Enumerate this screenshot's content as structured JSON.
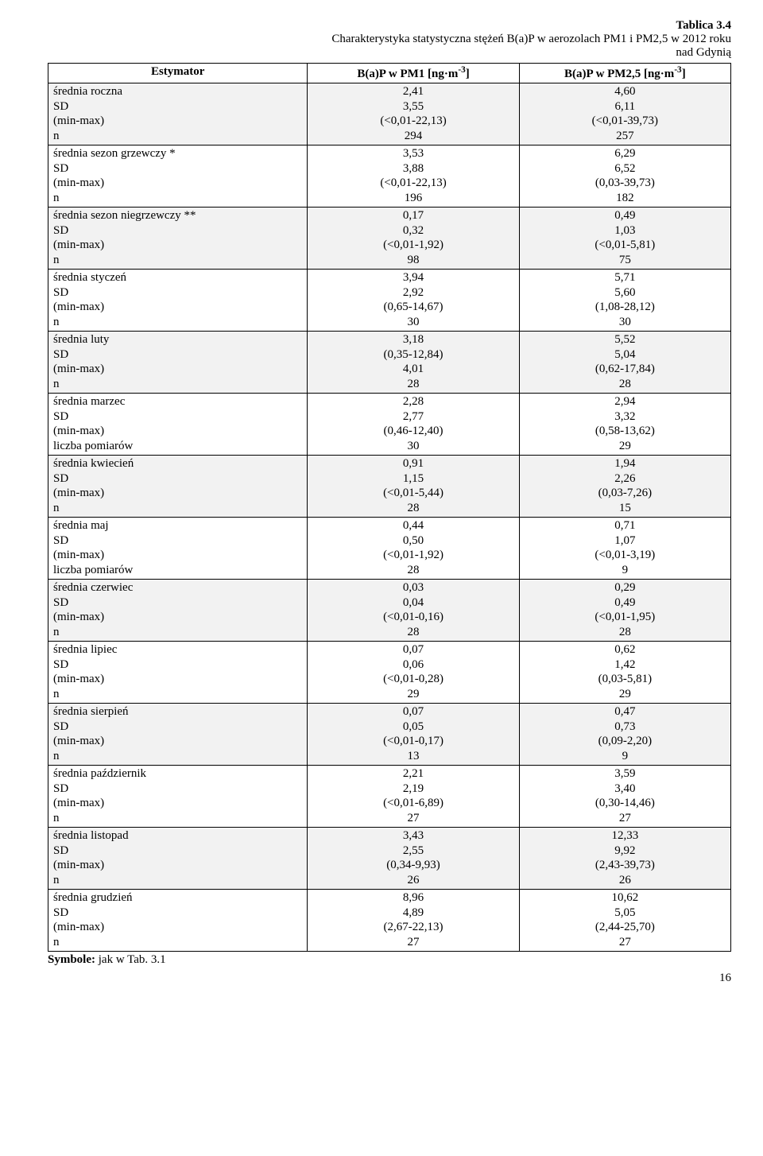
{
  "title": {
    "tablica": "Tablica 3.4",
    "line1": "Charakterystyka statystyczna stężeń B(a)P w aerozolach PM1 i PM2,5 w 2012 roku",
    "line2": "nad Gdynią"
  },
  "columns": {
    "estimator": "Estymator",
    "pm1_prefix": "B(a)P w PM1 [ng·m",
    "pm1_sup": "-3",
    "pm1_suffix": "]",
    "pm25_prefix": "B(a)P w PM2,5 [ng·m",
    "pm25_sup": "-3",
    "pm25_suffix": "]"
  },
  "groups": [
    {
      "shade": true,
      "rows": [
        {
          "l": "średnia roczna",
          "a": "2,41",
          "b": "4,60"
        },
        {
          "l": "SD",
          "a": "3,55",
          "b": "6,11"
        },
        {
          "l": "(min-max)",
          "a": "(<0,01-22,13)",
          "b": "(<0,01-39,73)"
        },
        {
          "l": "n",
          "a": "294",
          "b": "257"
        }
      ]
    },
    {
      "shade": false,
      "rows": [
        {
          "l": "średnia sezon grzewczy *",
          "a": "3,53",
          "b": "6,29"
        },
        {
          "l": "SD",
          "a": "3,88",
          "b": "6,52"
        },
        {
          "l": "(min-max)",
          "a": "(<0,01-22,13)",
          "b": "(0,03-39,73)"
        },
        {
          "l": "n",
          "a": "196",
          "b": "182"
        }
      ]
    },
    {
      "shade": true,
      "rows": [
        {
          "l": "średnia sezon niegrzewczy **",
          "a": "0,17",
          "b": "0,49"
        },
        {
          "l": "SD",
          "a": "0,32",
          "b": "1,03"
        },
        {
          "l": "(min-max)",
          "a": "(<0,01-1,92)",
          "b": "(<0,01-5,81)"
        },
        {
          "l": "n",
          "a": "98",
          "b": "75"
        }
      ]
    },
    {
      "shade": false,
      "rows": [
        {
          "l": "średnia styczeń",
          "a": "3,94",
          "b": "5,71"
        },
        {
          "l": "SD",
          "a": "2,92",
          "b": "5,60"
        },
        {
          "l": "(min-max)",
          "a": "(0,65-14,67)",
          "b": "(1,08-28,12)"
        },
        {
          "l": "n",
          "a": "30",
          "b": "30"
        }
      ]
    },
    {
      "shade": true,
      "rows": [
        {
          "l": "średnia luty",
          "a": "3,18",
          "b": "5,52"
        },
        {
          "l": "SD",
          "a": "(0,35-12,84)",
          "b": "5,04"
        },
        {
          "l": "(min-max)",
          "a": "4,01",
          "b": "(0,62-17,84)"
        },
        {
          "l": "n",
          "a": "28",
          "b": "28"
        }
      ]
    },
    {
      "shade": false,
      "rows": [
        {
          "l": "średnia marzec",
          "a": "2,28",
          "b": "2,94"
        },
        {
          "l": "SD",
          "a": "2,77",
          "b": "3,32"
        },
        {
          "l": " (min-max)",
          "a": "(0,46-12,40)",
          "b": "(0,58-13,62)"
        },
        {
          "l": "liczba pomiarów",
          "a": "30",
          "b": "29"
        }
      ]
    },
    {
      "shade": true,
      "rows": [
        {
          "l": "średnia kwiecień",
          "a": "0,91",
          "b": "1,94"
        },
        {
          "l": "SD",
          "a": "1,15",
          "b": "2,26"
        },
        {
          "l": "(min-max)",
          "a": "(<0,01-5,44)",
          "b": "(0,03-7,26)"
        },
        {
          "l": "n",
          "a": "28",
          "b": "15"
        }
      ]
    },
    {
      "shade": false,
      "rows": [
        {
          "l": "średnia maj",
          "a": "0,44",
          "b": "0,71"
        },
        {
          "l": "SD",
          "a": "0,50",
          "b": "1,07"
        },
        {
          "l": "(min-max)",
          "a": "(<0,01-1,92)",
          "b": "(<0,01-3,19)"
        },
        {
          "l": "liczba pomiarów",
          "a": "28",
          "b": "9"
        }
      ]
    },
    {
      "shade": true,
      "rows": [
        {
          "l": "średnia czerwiec",
          "a": "0,03",
          "b": "0,29"
        },
        {
          "l": "SD",
          "a": "0,04",
          "b": "0,49"
        },
        {
          "l": "(min-max)",
          "a": "(<0,01-0,16)",
          "b": "(<0,01-1,95)"
        },
        {
          "l": "n",
          "a": "28",
          "b": "28"
        }
      ]
    },
    {
      "shade": false,
      "rows": [
        {
          "l": "średnia lipiec",
          "a": "0,07",
          "b": "0,62"
        },
        {
          "l": "SD",
          "a": "0,06",
          "b": "1,42"
        },
        {
          "l": "(min-max)",
          "a": "(<0,01-0,28)",
          "b": "(0,03-5,81)"
        },
        {
          "l": "n",
          "a": "29",
          "b": "29"
        }
      ]
    },
    {
      "shade": true,
      "rows": [
        {
          "l": "średnia sierpień",
          "a": "0,07",
          "b": "0,47"
        },
        {
          "l": "SD",
          "a": "0,05",
          "b": "0,73"
        },
        {
          "l": "(min-max)",
          "a": "(<0,01-0,17)",
          "b": "(0,09-2,20)"
        },
        {
          "l": "n",
          "a": "13",
          "b": "9"
        }
      ]
    },
    {
      "shade": false,
      "rows": [
        {
          "l": "średnia październik",
          "a": "2,21",
          "b": "3,59"
        },
        {
          "l": "SD",
          "a": "2,19",
          "b": "3,40"
        },
        {
          "l": "(min-max)",
          "a": "(<0,01-6,89)",
          "b": "(0,30-14,46)"
        },
        {
          "l": "n",
          "a": "27",
          "b": "27"
        }
      ]
    },
    {
      "shade": true,
      "rows": [
        {
          "l": "średnia listopad",
          "a": "3,43",
          "b": "12,33"
        },
        {
          "l": "SD",
          "a": "2,55",
          "b": "9,92"
        },
        {
          "l": "(min-max)",
          "a": "(0,34-9,93)",
          "b": "(2,43-39,73)"
        },
        {
          "l": "n",
          "a": "26",
          "b": "26"
        }
      ]
    },
    {
      "shade": false,
      "rows": [
        {
          "l": "średnia grudzień",
          "a": "8,96",
          "b": "10,62"
        },
        {
          "l": "SD",
          "a": "4,89",
          "b": "5,05"
        },
        {
          "l": "(min-max)",
          "a": "(2,67-22,13)",
          "b": "(2,44-25,70)"
        },
        {
          "l": "n",
          "a": "27",
          "b": "27"
        }
      ]
    }
  ],
  "footer": {
    "symbole_label": "Symbole:",
    "symbole_text": " jak w Tab. 3.1",
    "page": "16"
  }
}
